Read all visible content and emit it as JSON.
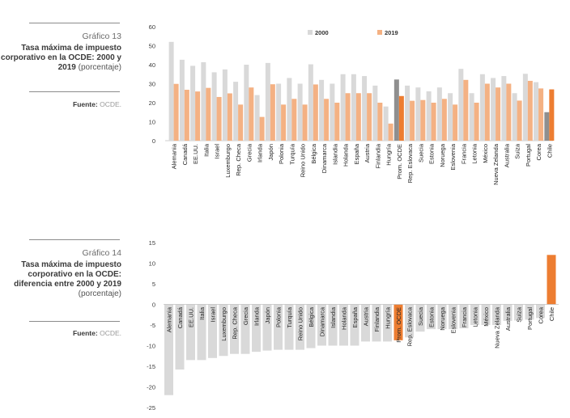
{
  "sidebar": [
    {
      "number": "Gráfico 13",
      "title": "Tasa máxima de impuesto corporativo en la OCDE: 2000 y 2019",
      "subtitle": "(porcentaje)",
      "source_label": "Fuente:",
      "source_value": "OCDE."
    },
    {
      "number": "Gráfico 14",
      "title": "Tasa máxima de impuesto corporativo en la OCDE: diferencia entre 2000 y 2019",
      "subtitle": "(porcentaje)",
      "source_label": "Fuente:",
      "source_value": "OCDE."
    }
  ],
  "chart_data": [
    {
      "type": "bar",
      "title": "Tasa máxima de impuesto corporativo en la OCDE: 2000 y 2019 (porcentaje)",
      "categories": [
        "Alemania",
        "Canadá",
        "EE.UU.",
        "Italia",
        "Israel",
        "Luxemburgo",
        "Rep. Checa",
        "Grecia",
        "Irlanda",
        "Japón",
        "Polonia",
        "Turquía",
        "Reino Unido",
        "Bélgica",
        "Dinamarca",
        "Islandia",
        "Holanda",
        "España",
        "Austria",
        "Finlandia",
        "Hungría",
        "Prom. OCDE",
        "Rep. Eslovaca",
        "Suecia",
        "Estonia",
        "Noruega",
        "Eslovenia",
        "Francia",
        "Letonia",
        "México",
        "Nueva Zelanda",
        "Australia",
        "Suiza",
        "Portugal",
        "Corea",
        "Chile"
      ],
      "series": [
        {
          "name": "2000",
          "color": "#d9d9d9",
          "highlight_color": "#8f8f8f",
          "values": [
            52,
            42.6,
            39.4,
            41.3,
            36,
            37.5,
            31,
            40,
            24,
            40.9,
            30,
            33,
            30,
            40.2,
            32,
            30,
            35,
            35,
            34,
            29,
            18,
            32.2,
            29,
            28,
            26,
            28,
            25,
            37.8,
            25,
            35,
            33,
            34,
            25,
            35.2,
            30.8,
            15
          ]
        },
        {
          "name": "2019",
          "color": "#f4b183",
          "highlight_color": "#ed7d31",
          "values": [
            29.9,
            26.8,
            25.9,
            27.8,
            23,
            24.9,
            19,
            28,
            12.5,
            29.7,
            19,
            22,
            19,
            29.6,
            22,
            20,
            25,
            25,
            25,
            20,
            9,
            23.5,
            21,
            21.4,
            20,
            22,
            19,
            32,
            20,
            30,
            28,
            30,
            21.1,
            31.5,
            27.5,
            27
          ]
        }
      ],
      "highlight_categories": [
        "Prom. OCDE",
        "Chile"
      ],
      "ylim": [
        0,
        60
      ],
      "yticks": [
        0,
        10,
        20,
        30,
        40,
        50,
        60
      ],
      "xlabel": "",
      "ylabel": "",
      "legend_position": "top-right"
    },
    {
      "type": "bar",
      "title": "Tasa máxima de impuesto corporativo en la OCDE: diferencia entre 2000 y 2019 (porcentaje)",
      "categories": [
        "Alemania",
        "Canadá",
        "EE.UU.",
        "Italia",
        "Israel",
        "Luxemburgo",
        "Rep. Checa",
        "Grecia",
        "Irlanda",
        "Japón",
        "Polonia",
        "Turquía",
        "Reino Unido",
        "Bélgica",
        "Dinamarca",
        "Islandia",
        "Holanda",
        "España",
        "Austria",
        "Finlandia",
        "Hungría",
        "Prom. OCDE",
        "Rep. Eslovaca",
        "Suecia",
        "Estonia",
        "Noruega",
        "Eslovenia",
        "Francia",
        "Letonia",
        "México",
        "Nueva Zelanda",
        "Australia",
        "Suiza",
        "Portugal",
        "Corea",
        "Chile"
      ],
      "values": [
        -22,
        -15.8,
        -13.5,
        -13.5,
        -13,
        -12.5,
        -12,
        -12,
        -11.5,
        -11.2,
        -11,
        -11,
        -11,
        -10.6,
        -10,
        -10,
        -10,
        -10,
        -9,
        -9,
        -9,
        -8.7,
        -8,
        -6.6,
        -6,
        -6,
        -6,
        -5.8,
        -5,
        -5,
        -5,
        -4,
        -3.9,
        -3.7,
        -3.3,
        12
      ],
      "colors": {
        "default": "#d9d9d9",
        "Prom. OCDE": "#ed7d31",
        "Chile": "#ed7d31"
      },
      "ylim": [
        -25,
        15
      ],
      "yticks": [
        15,
        10,
        5,
        0,
        -5,
        -10,
        -15,
        -20,
        -25
      ],
      "xlabel": "",
      "ylabel": ""
    }
  ]
}
